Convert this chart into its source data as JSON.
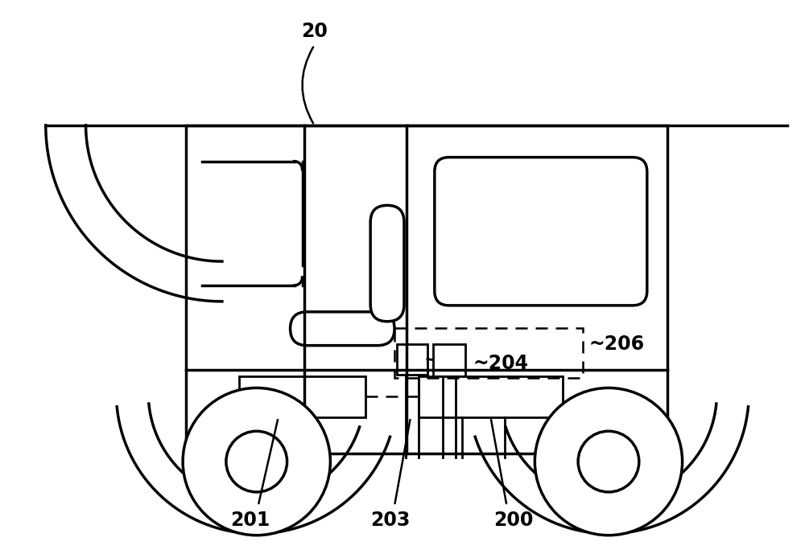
{
  "bg_color": "#ffffff",
  "line_color": "#000000",
  "fig_width": 10.0,
  "fig_height": 6.94,
  "label_20": "20",
  "label_200": "200",
  "label_201": "201",
  "label_203": "203",
  "label_204": "204",
  "label_206": "206"
}
